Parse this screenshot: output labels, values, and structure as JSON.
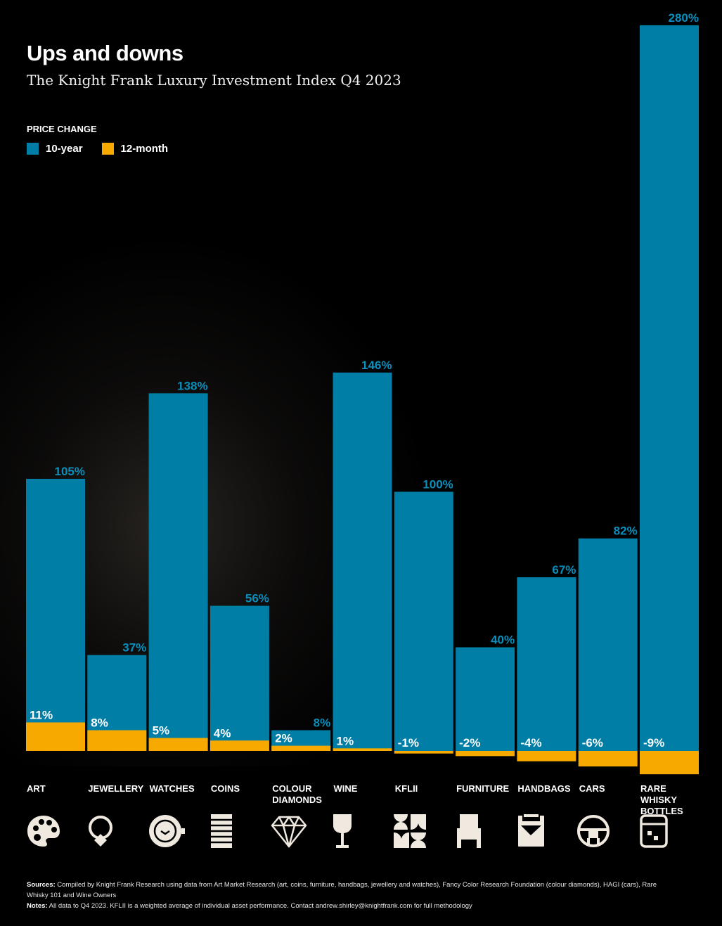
{
  "header": {
    "title": "Ups and downs",
    "subtitle": "The Knight Frank Luxury Investment Index Q4 2023"
  },
  "legend": {
    "title": "PRICE CHANGE",
    "items": [
      {
        "label": "10-year",
        "color": "#007ea6"
      },
      {
        "label": "12-month",
        "color": "#f8a900"
      }
    ]
  },
  "chart_data": {
    "type": "bar",
    "title": "Ups and downs",
    "subtitle": "The Knight Frank Luxury Investment Index Q4 2023",
    "legend_title": "PRICE CHANGE",
    "legend_position": "top-left",
    "grid": false,
    "categories": [
      "ART",
      "JEWELLERY",
      "WATCHES",
      "COINS",
      "COLOUR\nDIAMONDS",
      "WINE",
      "KFLII",
      "FURNITURE",
      "HANDBAGS",
      "CARS",
      "RARE WHISKY\nBOTTLES"
    ],
    "series": [
      {
        "name": "10-year",
        "color": "#007ea6",
        "values": [
          105,
          37,
          138,
          56,
          8,
          146,
          100,
          40,
          67,
          82,
          280
        ],
        "labels": [
          "105%",
          "37%",
          "138%",
          "56%",
          "8%",
          "146%",
          "100%",
          "40%",
          "67%",
          "82%",
          "280%"
        ]
      },
      {
        "name": "12-month",
        "color": "#f8a900",
        "values": [
          11,
          8,
          5,
          4,
          2,
          1,
          -1,
          -2,
          -4,
          -6,
          -9
        ],
        "labels": [
          "11%",
          "8%",
          "5%",
          "4%",
          "2%",
          "1%",
          "-1%",
          "-2%",
          "-4%",
          "-6%",
          "-9%"
        ]
      }
    ],
    "value_label_color_10y": "#0a8fbd"
  },
  "icons": [
    "palette-icon",
    "ring-icon",
    "watch-icon",
    "coins-icon",
    "diamond-icon",
    "wine-glass-icon",
    "kflii-icon",
    "chair-icon",
    "handbag-icon",
    "steering-wheel-icon",
    "whisky-glass-icon"
  ],
  "footer": {
    "sources_label": "Sources:",
    "sources_text": " Compiled by Knight Frank Research using data from Art Market Research (art, coins, furniture, handbags, jewellery and watches), Fancy Color Research Foundation (colour diamonds), HAGI (cars), Rare Whisky 101 and Wine Owners",
    "notes_label": "Notes:",
    "notes_text": " All data to Q4 2023. KFLII is a weighted average of individual asset performance. Contact andrew.shirley@knightfrank.com for full methodology"
  }
}
